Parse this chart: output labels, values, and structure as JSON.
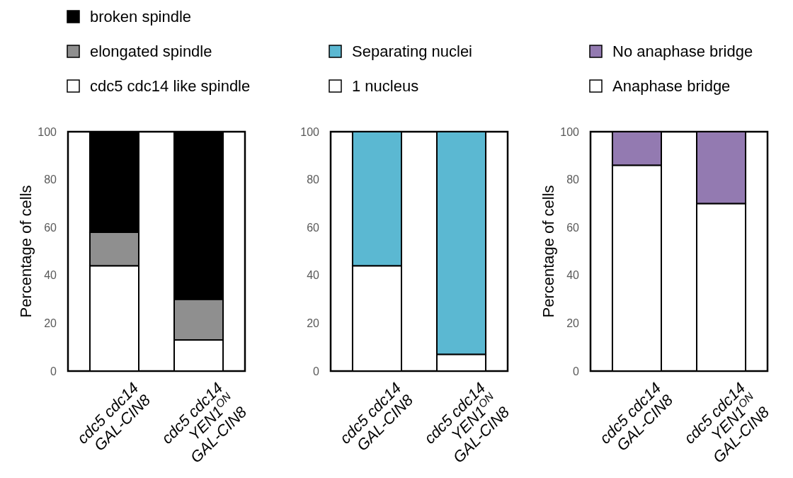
{
  "chart_data": [
    {
      "type": "bar",
      "stacked": true,
      "categories": [
        "cdc5 cdc14\nGAL-CIN8",
        "cdc5 cdc14\nYEN1$^{ON}$\nGAL-CIN8"
      ],
      "ylabel": "Percentage of cells",
      "ylim": [
        0,
        100
      ],
      "yticks": [
        0,
        20,
        40,
        60,
        80,
        100
      ],
      "legend": "top",
      "series": [
        {
          "name": "cdc5 cdc14 like spindle",
          "color": "#ffffff",
          "values": [
            44,
            13
          ]
        },
        {
          "name": "elongated spindle",
          "color": "#8f8f8f",
          "values": [
            14,
            17
          ]
        },
        {
          "name": "broken spindle",
          "color": "#000000",
          "values": [
            42,
            70
          ]
        }
      ]
    },
    {
      "type": "bar",
      "stacked": true,
      "categories": [
        "cdc5 cdc14\nGAL-CIN8",
        "cdc5 cdc14\nYEN1$^{ON}$\nGAL-CIN8"
      ],
      "ylim": [
        0,
        100
      ],
      "yticks": [
        0,
        20,
        40,
        60,
        80,
        100
      ],
      "legend": "top",
      "series": [
        {
          "name": "1 nucleus",
          "color": "#ffffff",
          "values": [
            44,
            7
          ]
        },
        {
          "name": "Separating nuclei",
          "color": "#5bb8d2",
          "values": [
            56,
            93
          ]
        }
      ]
    },
    {
      "type": "bar",
      "stacked": true,
      "categories": [
        "cdc5 cdc14\nGAL-CIN8",
        "cdc5 cdc14\nYEN1$^{ON}$\nGAL-CIN8"
      ],
      "ylabel": "Percentage of cells",
      "ylim": [
        0,
        100
      ],
      "yticks": [
        0,
        20,
        40,
        60,
        80,
        100
      ],
      "legend": "top",
      "series": [
        {
          "name": "Anaphase bridge",
          "color": "#ffffff",
          "values": [
            86,
            70
          ]
        },
        {
          "name": "No anaphase bridge",
          "color": "#937ab1",
          "values": [
            14,
            30
          ]
        }
      ]
    }
  ]
}
